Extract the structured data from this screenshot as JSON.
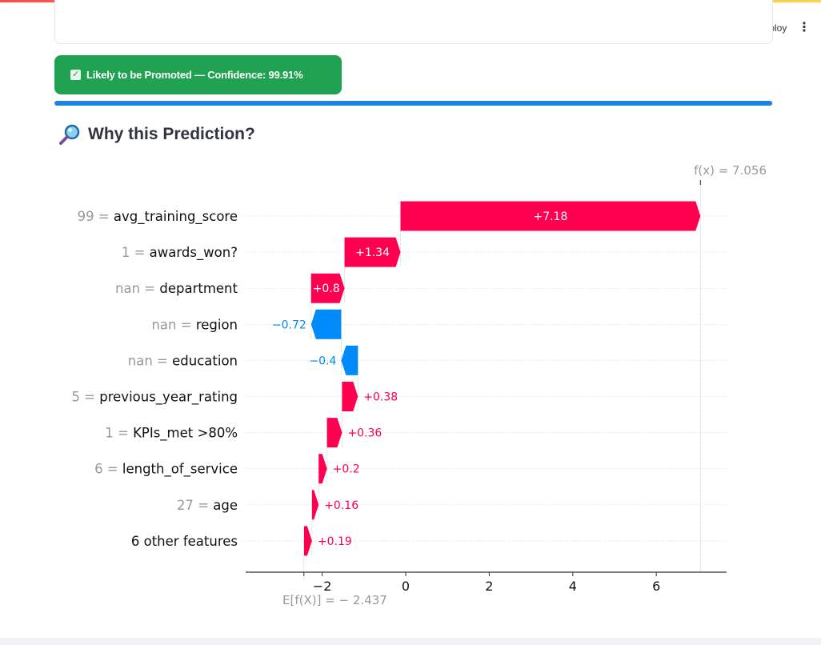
{
  "header": {
    "deploy_label": "Deploy",
    "menu_icon": "vertical-ellipsis-icon"
  },
  "prediction": {
    "alert_text": "Likely to be Promoted — Confidence: 99.91%",
    "status_color": "#21a252",
    "icon": "check-box-icon",
    "confidence_progress": 0.9991
  },
  "section": {
    "title": "Why this Prediction?",
    "icon": "magnifying-glass-icon"
  },
  "chart_data": {
    "type": "waterfall",
    "base_value": -2.437,
    "base_label": "E[f(X)] = − 2.437",
    "output_value": 7.056,
    "output_label": "f(x) = 7.056",
    "xlim": [
      -3.7,
      8.0
    ],
    "xticks": [
      "−2",
      "0",
      "2",
      "4",
      "6"
    ],
    "xtick_values": [
      -2,
      0,
      2,
      4,
      6
    ],
    "positive_color": "#ff0051",
    "negative_color": "#008bfb",
    "features": [
      {
        "value_prefix": "99",
        "name": "avg_training_score",
        "contribution": 7.18,
        "label": "+7.18"
      },
      {
        "value_prefix": "1",
        "name": "awards_won?",
        "contribution": 1.34,
        "label": "+1.34"
      },
      {
        "value_prefix": "nan",
        "name": "department",
        "contribution": 0.8,
        "label": "+0.8"
      },
      {
        "value_prefix": "nan",
        "name": "region",
        "contribution": -0.72,
        "label": "−0.72"
      },
      {
        "value_prefix": "nan",
        "name": "education",
        "contribution": -0.4,
        "label": "−0.4"
      },
      {
        "value_prefix": "5",
        "name": "previous_year_rating",
        "contribution": 0.38,
        "label": "+0.38"
      },
      {
        "value_prefix": "1",
        "name": "KPIs_met >80%",
        "contribution": 0.36,
        "label": "+0.36"
      },
      {
        "value_prefix": "6",
        "name": "length_of_service",
        "contribution": 0.2,
        "label": "+0.2"
      },
      {
        "value_prefix": "27",
        "name": "age",
        "contribution": 0.16,
        "label": "+0.16"
      },
      {
        "value_prefix": "",
        "name": "6 other features",
        "contribution": 0.19,
        "label": "+0.19"
      }
    ]
  }
}
